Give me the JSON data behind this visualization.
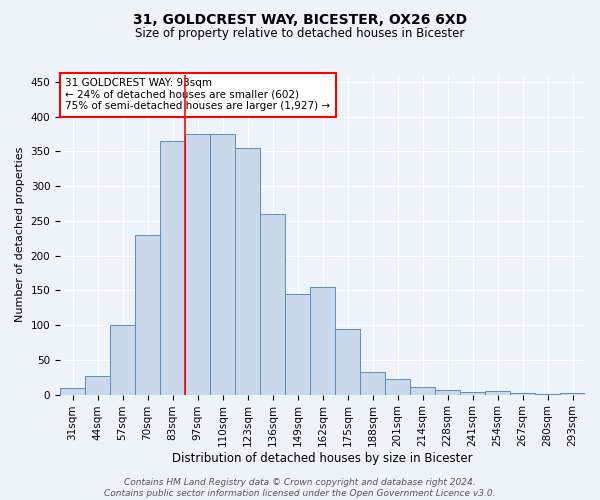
{
  "title1": "31, GOLDCREST WAY, BICESTER, OX26 6XD",
  "title2": "Size of property relative to detached houses in Bicester",
  "xlabel": "Distribution of detached houses by size in Bicester",
  "ylabel": "Number of detached properties",
  "bar_labels": [
    "31sqm",
    "44sqm",
    "57sqm",
    "70sqm",
    "83sqm",
    "97sqm",
    "110sqm",
    "123sqm",
    "136sqm",
    "149sqm",
    "162sqm",
    "175sqm",
    "188sqm",
    "201sqm",
    "214sqm",
    "228sqm",
    "241sqm",
    "254sqm",
    "267sqm",
    "280sqm",
    "293sqm"
  ],
  "bar_values": [
    10,
    27,
    100,
    230,
    365,
    375,
    375,
    355,
    260,
    145,
    155,
    95,
    33,
    22,
    11,
    7,
    4,
    5,
    2,
    1,
    3
  ],
  "bar_color": "#c9d9eb",
  "bar_edge_color": "#5b8db8",
  "annotation_text": "31 GOLDCREST WAY: 93sqm\n← 24% of detached houses are smaller (602)\n75% of semi-detached houses are larger (1,927) →",
  "annotation_box_color": "white",
  "annotation_box_edge_color": "red",
  "vline_color": "red",
  "footer": "Contains HM Land Registry data © Crown copyright and database right 2024.\nContains public sector information licensed under the Open Government Licence v3.0.",
  "ylim": [
    0,
    460
  ],
  "yticks": [
    0,
    50,
    100,
    150,
    200,
    250,
    300,
    350,
    400,
    450
  ],
  "bg_color": "#eef2f9",
  "grid_color": "white",
  "title1_fontsize": 10,
  "title2_fontsize": 8.5,
  "ylabel_fontsize": 8,
  "xlabel_fontsize": 8.5,
  "tick_fontsize": 7.5,
  "footer_fontsize": 6.5
}
